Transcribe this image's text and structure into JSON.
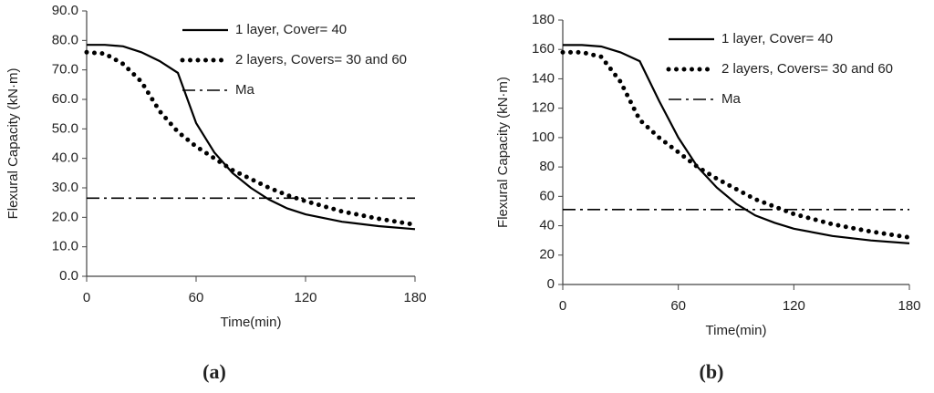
{
  "chart_data": [
    {
      "type": "line",
      "title": "(a)",
      "x_label": "Time(min)",
      "y_label": "Flexural Capacity (kN·m)",
      "x": [
        0,
        10,
        20,
        30,
        40,
        50,
        60,
        70,
        80,
        90,
        100,
        110,
        120,
        140,
        160,
        180
      ],
      "series": [
        {
          "name": "1 layer, Cover= 40",
          "color": "#000000",
          "style": "solid",
          "values": [
            78.5,
            78.5,
            78,
            76,
            73,
            69,
            52,
            42,
            35,
            30,
            26,
            23,
            21,
            18.5,
            17,
            16
          ]
        },
        {
          "name": "2 layers, Covers= 30 and 60",
          "color": "#000000",
          "style": "dotted",
          "values": [
            76,
            75.5,
            72,
            66,
            56,
            49,
            44,
            40,
            36,
            33,
            30,
            27.5,
            25.5,
            22,
            19.5,
            17.5
          ]
        },
        {
          "name": "Ma",
          "color": "#000000",
          "style": "dashdot",
          "values": [
            26.5,
            26.5,
            26.5,
            26.5,
            26.5,
            26.5,
            26.5,
            26.5,
            26.5,
            26.5,
            26.5,
            26.5,
            26.5,
            26.5,
            26.5,
            26.5
          ]
        }
      ],
      "xlim": [
        0,
        180
      ],
      "xticks": [
        0,
        60,
        120,
        180
      ],
      "ylim": [
        0,
        90
      ],
      "yticks": [
        {
          "value": 0,
          "label": "0.0"
        },
        {
          "value": 10,
          "label": "10.0"
        },
        {
          "value": 20,
          "label": "20.0"
        },
        {
          "value": 30,
          "label": "30.0"
        },
        {
          "value": 40,
          "label": "40.0"
        },
        {
          "value": 50,
          "label": "50.0"
        },
        {
          "value": 60,
          "label": "60.0"
        },
        {
          "value": 70,
          "label": "70.0"
        },
        {
          "value": 80,
          "label": "80.0"
        },
        {
          "value": 90,
          "label": "90.0"
        }
      ],
      "legend": "top-right",
      "grid": false
    },
    {
      "type": "line",
      "title": "(b)",
      "x_label": "Time(min)",
      "y_label": "Flexural Capacity (kN·m)",
      "x": [
        0,
        10,
        20,
        30,
        40,
        50,
        60,
        70,
        80,
        90,
        100,
        110,
        120,
        140,
        160,
        180
      ],
      "series": [
        {
          "name": "1 layer, Cover= 40",
          "color": "#000000",
          "style": "solid",
          "values": [
            163,
            163,
            162,
            158,
            152,
            125,
            100,
            80,
            66,
            55,
            47,
            42,
            38,
            33,
            30,
            28
          ]
        },
        {
          "name": "2 layers, Covers= 30 and 60",
          "color": "#000000",
          "style": "dotted",
          "values": [
            158,
            158,
            155,
            138,
            112,
            100,
            90,
            80,
            72,
            65,
            58,
            53,
            48,
            41,
            36,
            32
          ]
        },
        {
          "name": "Ma",
          "color": "#000000",
          "style": "dashdot",
          "values": [
            51,
            51,
            51,
            51,
            51,
            51,
            51,
            51,
            51,
            51,
            51,
            51,
            51,
            51,
            51,
            51
          ]
        }
      ],
      "xlim": [
        0,
        180
      ],
      "xticks": [
        0,
        60,
        120,
        180
      ],
      "ylim": [
        0,
        180
      ],
      "yticks": [
        0,
        20,
        40,
        60,
        80,
        100,
        120,
        140,
        160,
        180
      ],
      "legend": "top-right",
      "grid": false
    }
  ]
}
